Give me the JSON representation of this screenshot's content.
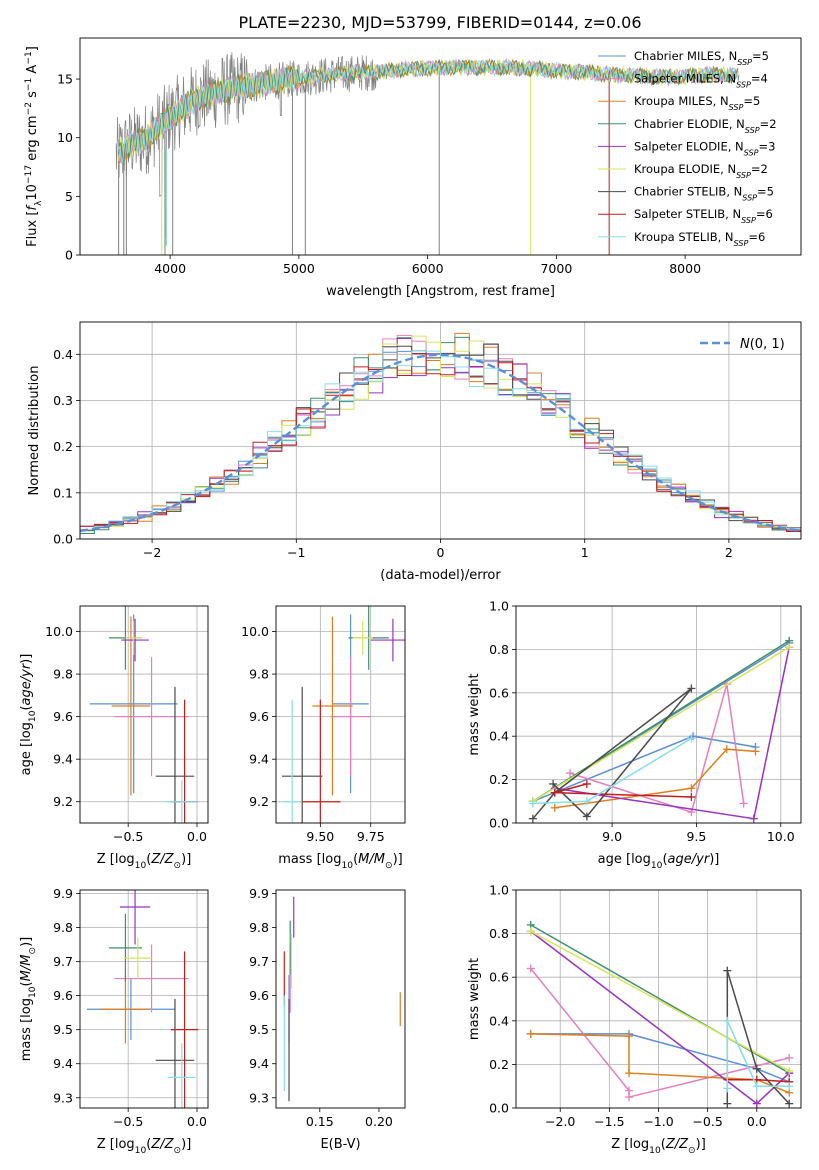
{
  "figure": {
    "title": "PLATE=2230, MJD=53799, FIBERID=0144, z=0.06"
  },
  "colors": {
    "data_spectrum": "#7f7f7f",
    "fit_spectrum": "#7fdfe0",
    "gaussian": "#5b8fd6",
    "grid": "#b0b0b0"
  },
  "chart_data": [
    {
      "id": "spectrum",
      "type": "line",
      "xlabel": "wavelength [Angstrom, rest frame]",
      "ylabel": "Flux [f_λ10^-17 erg cm^-2 s^-1 A^-1]",
      "xlim": [
        3300,
        8900
      ],
      "ylim": [
        0,
        18.5
      ],
      "xticks": [
        4000,
        5000,
        6000,
        7000,
        8000
      ],
      "yticks": [
        0,
        5,
        10,
        15
      ],
      "grid": false,
      "legend_position": "top-right",
      "continuum": {
        "x": [
          3580,
          3700,
          3800,
          3900,
          4000,
          4100,
          4200,
          4400,
          4600,
          4800,
          5000,
          5200,
          5400,
          5600,
          5800,
          6000,
          6200,
          6400,
          6600,
          6800,
          7000,
          7200,
          7400,
          7600,
          7800,
          8000,
          8200,
          8400
        ],
        "y": [
          8.5,
          9.5,
          9.8,
          10.8,
          11.8,
          12.5,
          13.3,
          14.0,
          14.4,
          14.8,
          15.1,
          15.3,
          15.5,
          15.6,
          15.8,
          15.9,
          16.0,
          16.0,
          16.0,
          15.9,
          15.7,
          15.6,
          15.4,
          15.3,
          15.2,
          15.2,
          15.4,
          15.3
        ]
      },
      "series": [
        {
          "name": "Chabrier MILES",
          "nssp": "5",
          "color": "#5b8fd6"
        },
        {
          "name": "Salpeter MILES",
          "nssp": "4",
          "color": "#e67fbd"
        },
        {
          "name": "Kroupa MILES",
          "nssp": "5",
          "color": "#e07f1f"
        },
        {
          "name": "Chabrier ELODIE",
          "nssp": "2",
          "color": "#3e8f6e"
        },
        {
          "name": "Salpeter ELODIE",
          "nssp": "3",
          "color": "#9932c0"
        },
        {
          "name": "Kroupa ELODIE",
          "nssp": "2",
          "color": "#d6e65a"
        },
        {
          "name": "Chabrier STELIB",
          "nssp": "5",
          "color": "#4a4a4a"
        },
        {
          "name": "Salpeter STELIB",
          "nssp": "6",
          "color": "#c01e1e"
        },
        {
          "name": "Kroupa STELIB",
          "nssp": "6",
          "color": "#86dee8"
        }
      ]
    },
    {
      "id": "residuals",
      "type": "area",
      "xlabel": "(data-model)/error",
      "ylabel": "Normed distribution",
      "xlim": [
        -2.5,
        2.5
      ],
      "ylim": [
        0,
        0.47
      ],
      "xticks": [
        -2,
        -1,
        0,
        1,
        2
      ],
      "yticks": [
        0.0,
        0.1,
        0.2,
        0.3,
        0.4
      ],
      "grid": true,
      "legend_position": "top-right",
      "legend_label": "N(0,1)",
      "bin_width": 0.1
    },
    {
      "id": "age_vs_z",
      "type": "scatter",
      "xlabel": "Z [log10(Z/Z_sun)]",
      "ylabel": "age [log10(age/yr)]",
      "xlim": [
        -0.85,
        0.08
      ],
      "ylim": [
        9.1,
        10.12
      ],
      "xticks": [
        -0.5,
        0.0
      ],
      "yticks": [
        9.2,
        9.4,
        9.6,
        9.8,
        10.0
      ],
      "grid": true,
      "points": [
        {
          "series": "Chabrier MILES",
          "x": -0.46,
          "y": 9.66,
          "xerr": 0.32,
          "yerr": 0.42
        },
        {
          "series": "Salpeter MILES",
          "x": -0.33,
          "y": 9.6,
          "xerr": 0.27,
          "yerr": 0.28
        },
        {
          "series": "Kroupa MILES",
          "x": -0.48,
          "y": 9.65,
          "xerr": 0.14,
          "yerr": 0.42
        },
        {
          "series": "Chabrier ELODIE",
          "x": -0.52,
          "y": 9.97,
          "xerr": 0.12,
          "yerr": 0.15
        },
        {
          "series": "Salpeter ELODIE",
          "x": -0.45,
          "y": 9.96,
          "xerr": 0.1,
          "yerr": 0.1
        },
        {
          "series": "Kroupa ELODIE",
          "x": -0.46,
          "y": 9.97,
          "xerr": 0.06,
          "yerr": 0.08
        },
        {
          "series": "Chabrier STELIB",
          "x": -0.16,
          "y": 9.32,
          "xerr": 0.14,
          "yerr": 0.42
        },
        {
          "series": "Salpeter STELIB",
          "x": -0.09,
          "y": 9.2,
          "xerr": 0.1,
          "yerr": 0.48
        },
        {
          "series": "Kroupa STELIB",
          "x": -0.11,
          "y": 9.2,
          "xerr": 0.12,
          "yerr": 0.1
        }
      ]
    },
    {
      "id": "age_vs_mass",
      "type": "scatter",
      "xlabel": "mass [log10(M/M_sun)]",
      "ylabel": "",
      "xlim": [
        9.28,
        9.92
      ],
      "ylim": [
        9.1,
        10.12
      ],
      "xticks": [
        9.5,
        9.75
      ],
      "yticks": [
        9.2,
        9.4,
        9.6,
        9.8,
        10.0
      ],
      "grid": true,
      "points": [
        {
          "series": "Chabrier MILES",
          "x": 9.65,
          "y": 9.66,
          "xerr": 0.09,
          "yerr": 0.42
        },
        {
          "series": "Salpeter MILES",
          "x": 9.65,
          "y": 9.6,
          "xerr": 0.1,
          "yerr": 0.28
        },
        {
          "series": "Kroupa MILES",
          "x": 9.56,
          "y": 9.65,
          "xerr": 0.1,
          "yerr": 0.42
        },
        {
          "series": "Chabrier ELODIE",
          "x": 9.74,
          "y": 9.97,
          "xerr": 0.1,
          "yerr": 0.15
        },
        {
          "series": "Salpeter ELODIE",
          "x": 9.86,
          "y": 9.96,
          "xerr": 0.11,
          "yerr": 0.1
        },
        {
          "series": "Kroupa ELODIE",
          "x": 9.71,
          "y": 9.97,
          "xerr": 0.05,
          "yerr": 0.08
        },
        {
          "series": "Chabrier STELIB",
          "x": 9.41,
          "y": 9.32,
          "xerr": 0.1,
          "yerr": 0.42
        },
        {
          "series": "Salpeter STELIB",
          "x": 9.5,
          "y": 9.2,
          "xerr": 0.1,
          "yerr": 0.48
        },
        {
          "series": "Kroupa STELIB",
          "x": 9.36,
          "y": 9.2,
          "xerr": 0.05,
          "yerr": 0.48
        }
      ]
    },
    {
      "id": "weight_vs_age",
      "type": "line",
      "xlabel": "age [log10(age/yr)]",
      "ylabel": "mass weight",
      "xlim": [
        8.43,
        10.12
      ],
      "ylim": [
        0,
        1.0
      ],
      "xticks": [
        9.0,
        9.5,
        10.0
      ],
      "yticks": [
        0.0,
        0.2,
        0.4,
        0.6,
        0.8,
        1.0
      ],
      "grid": true,
      "series": [
        {
          "name": "Chabrier MILES",
          "x": [
            10.05,
            8.53,
            9.48,
            9.85
          ],
          "y": [
            0.83,
            0.1,
            0.4,
            0.35
          ]
        },
        {
          "name": "Salpeter MILES",
          "x": [
            9.78,
            9.68,
            9.47,
            8.75
          ],
          "y": [
            0.09,
            0.64,
            0.05,
            0.23
          ]
        },
        {
          "name": "Kroupa MILES",
          "x": [
            9.85,
            9.68,
            9.47,
            8.66
          ],
          "y": [
            0.33,
            0.34,
            0.16,
            0.07
          ]
        },
        {
          "name": "Chabrier ELODIE",
          "x": [
            8.53,
            10.05
          ],
          "y": [
            0.1,
            0.84
          ]
        },
        {
          "name": "Salpeter ELODIE",
          "x": [
            10.05,
            9.84,
            8.66
          ],
          "y": [
            0.81,
            0.02,
            0.16
          ]
        },
        {
          "name": "Kroupa ELODIE",
          "x": [
            8.53,
            10.05
          ],
          "y": [
            0.1,
            0.81
          ]
        },
        {
          "name": "Chabrier STELIB",
          "x": [
            8.53,
            8.66,
            9.47,
            8.85,
            8.65
          ],
          "y": [
            0.02,
            0.14,
            0.62,
            0.03,
            0.18
          ]
        },
        {
          "name": "Salpeter STELIB",
          "x": [
            8.85,
            8.66,
            9.47
          ],
          "y": [
            0.18,
            0.14,
            0.12
          ]
        },
        {
          "name": "Kroupa STELIB",
          "x": [
            8.53,
            8.85,
            9.47
          ],
          "y": [
            0.09,
            0.1,
            0.39
          ]
        }
      ]
    },
    {
      "id": "mass_vs_z",
      "type": "scatter",
      "xlabel": "Z [log10(Z/Z_sun)]",
      "ylabel": "mass [log10(M/M_sun)]",
      "xlim": [
        -0.85,
        0.08
      ],
      "ylim": [
        9.27,
        9.91
      ],
      "xticks": [
        -0.5,
        0.0
      ],
      "yticks": [
        9.3,
        9.4,
        9.5,
        9.6,
        9.7,
        9.8,
        9.9
      ],
      "grid": true,
      "points": [
        {
          "series": "Chabrier MILES",
          "x": -0.48,
          "y": 9.56,
          "xerr": 0.32,
          "yerr": 0.09
        },
        {
          "series": "Salpeter MILES",
          "x": -0.33,
          "y": 9.65,
          "xerr": 0.27,
          "yerr": 0.1
        },
        {
          "series": "Kroupa MILES",
          "x": -0.52,
          "y": 9.56,
          "xerr": 0.18,
          "yerr": 0.1
        },
        {
          "series": "Chabrier ELODIE",
          "x": -0.52,
          "y": 9.74,
          "xerr": 0.12,
          "yerr": 0.1
        },
        {
          "series": "Salpeter ELODIE",
          "x": -0.45,
          "y": 9.86,
          "xerr": 0.11,
          "yerr": 0.11
        },
        {
          "series": "Kroupa ELODIE",
          "x": -0.43,
          "y": 9.71,
          "xerr": 0.1,
          "yerr": 0.06
        },
        {
          "series": "Chabrier STELIB",
          "x": -0.16,
          "y": 9.41,
          "xerr": 0.14,
          "yerr": 0.18
        },
        {
          "series": "Salpeter STELIB",
          "x": -0.09,
          "y": 9.5,
          "xerr": 0.1,
          "yerr": 0.23
        },
        {
          "series": "Kroupa STELIB",
          "x": -0.11,
          "y": 9.36,
          "xerr": 0.1,
          "yerr": 0.1
        }
      ]
    },
    {
      "id": "mass_vs_ebv",
      "type": "scatter",
      "xlabel": "E(B-V)",
      "ylabel": "",
      "xlim": [
        0.113,
        0.222
      ],
      "ylim": [
        9.27,
        9.91
      ],
      "xticks": [
        0.15,
        0.2
      ],
      "yticks": [
        9.3,
        9.4,
        9.5,
        9.6,
        9.7,
        9.8,
        9.9
      ],
      "grid": false,
      "points": [
        {
          "series": "Chabrier MILES",
          "x": 0.124,
          "y": 9.56,
          "yerr": 0.1
        },
        {
          "series": "Salpeter MILES",
          "x": 0.125,
          "y": 9.65,
          "yerr": 0.1
        },
        {
          "series": "Kroupa MILES",
          "x": 0.218,
          "y": 9.56,
          "yerr": 0.05
        },
        {
          "series": "Chabrier ELODIE",
          "x": 0.125,
          "y": 9.74,
          "yerr": 0.08
        },
        {
          "series": "Salpeter ELODIE",
          "x": 0.128,
          "y": 9.83,
          "yerr": 0.06
        },
        {
          "series": "Kroupa ELODIE",
          "x": 0.126,
          "y": 9.7,
          "yerr": 0.08
        },
        {
          "series": "Chabrier STELIB",
          "x": 0.124,
          "y": 9.44,
          "yerr": 0.15
        },
        {
          "series": "Salpeter STELIB",
          "x": 0.12,
          "y": 9.65,
          "yerr": 0.08
        },
        {
          "series": "Kroupa STELIB",
          "x": 0.12,
          "y": 9.46,
          "yerr": 0.14
        }
      ]
    },
    {
      "id": "weight_vs_z",
      "type": "line",
      "xlabel": "Z [log10(Z/Z_sun)]",
      "ylabel": "mass weight",
      "xlim": [
        -2.45,
        0.45
      ],
      "ylim": [
        0,
        1.0
      ],
      "xticks": [
        -2.0,
        -1.5,
        -1.0,
        -0.5,
        0.0
      ],
      "yticks": [
        0.0,
        0.2,
        0.4,
        0.6,
        0.8,
        1.0
      ],
      "grid": true,
      "series": [
        {
          "name": "Chabrier MILES",
          "x": [
            -2.3,
            -1.3,
            0.0,
            0.33
          ],
          "y": [
            0.34,
            0.34,
            0.18,
            0.12
          ]
        },
        {
          "name": "Salpeter MILES",
          "x": [
            -2.3,
            -1.3,
            -1.3,
            0.33
          ],
          "y": [
            0.64,
            0.08,
            0.05,
            0.23
          ]
        },
        {
          "name": "Kroupa MILES",
          "x": [
            -2.3,
            -1.3,
            -1.3,
            0.0,
            0.33
          ],
          "y": [
            0.34,
            0.33,
            0.16,
            0.13,
            0.07
          ]
        },
        {
          "name": "Chabrier ELODIE",
          "x": [
            -2.3,
            0.33
          ],
          "y": [
            0.84,
            0.16
          ]
        },
        {
          "name": "Salpeter ELODIE",
          "x": [
            -2.3,
            0.0,
            0.33
          ],
          "y": [
            0.81,
            0.02,
            0.16
          ]
        },
        {
          "name": "Kroupa ELODIE",
          "x": [
            -2.3,
            0.33
          ],
          "y": [
            0.81,
            0.17
          ]
        },
        {
          "name": "Chabrier STELIB",
          "x": [
            -0.3,
            -0.3,
            0.0,
            0.33
          ],
          "y": [
            0.02,
            0.63,
            0.18,
            0.02
          ]
        },
        {
          "name": "Salpeter STELIB",
          "x": [
            -0.3,
            0.0,
            0.33
          ],
          "y": [
            0.13,
            0.13,
            0.12
          ]
        },
        {
          "name": "Kroupa STELIB",
          "x": [
            -0.3,
            -0.3,
            0.0,
            0.33
          ],
          "y": [
            0.09,
            0.4,
            0.1,
            0.1
          ]
        }
      ]
    }
  ]
}
